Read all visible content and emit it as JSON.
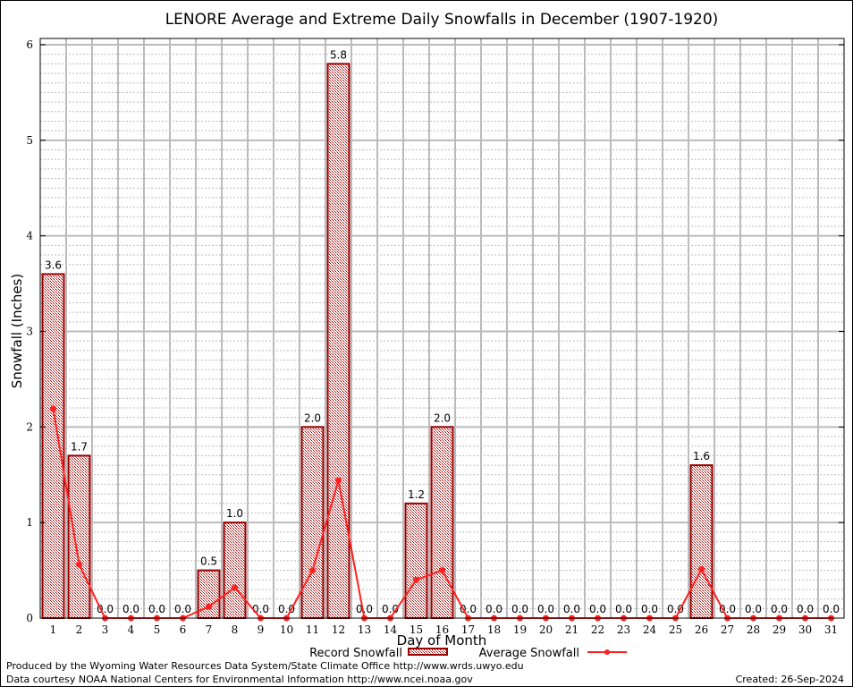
{
  "chart_data": {
    "type": "bar",
    "title": "LENORE Average and Extreme Daily Snowfalls in December (1907-1920)",
    "xlabel": "Day of Month",
    "ylabel": "Snowfall (Inches)",
    "ylim": [
      0,
      6
    ],
    "yticks": [
      0,
      1,
      2,
      3,
      4,
      5,
      6
    ],
    "grid": true,
    "legend_placement": "bottom-center",
    "categories": [
      1,
      2,
      3,
      4,
      5,
      6,
      7,
      8,
      9,
      10,
      11,
      12,
      13,
      14,
      15,
      16,
      17,
      18,
      19,
      20,
      21,
      22,
      23,
      24,
      25,
      26,
      27,
      28,
      29,
      30,
      31
    ],
    "series": [
      {
        "name": "Record Snowfall",
        "type": "bar",
        "color": "#990000",
        "values": [
          3.6,
          1.7,
          0,
          0,
          0,
          0,
          0.5,
          1.0,
          0,
          0,
          2.0,
          5.8,
          0,
          0,
          1.2,
          2.0,
          0,
          0,
          0,
          0,
          0,
          0,
          0,
          0,
          0,
          1.6,
          0,
          0,
          0,
          0,
          0
        ],
        "labels": [
          "3.6",
          "1.7",
          "0.0",
          "0.0",
          "0.0",
          "0.0",
          "0.5",
          "1.0",
          "0.0",
          "0.0",
          "2.0",
          "5.8",
          "0.0",
          "0.0",
          "1.2",
          "2.0",
          "0.0",
          "0.0",
          "0.0",
          "0.0",
          "0.0",
          "0.0",
          "0.0",
          "0.0",
          "0.0",
          "1.6",
          "0.0",
          "0.0",
          "0.0",
          "0.0",
          "0.0"
        ]
      },
      {
        "name": "Average Snowfall",
        "type": "line",
        "color": "#ff2020",
        "values": [
          2.19,
          0.56,
          0,
          0,
          0,
          0,
          0.12,
          0.32,
          0,
          0,
          0.5,
          1.44,
          0,
          0,
          0.4,
          0.5,
          0,
          0,
          0,
          0,
          0,
          0,
          0,
          0,
          0,
          0.51,
          0,
          0,
          0,
          0,
          0
        ]
      }
    ]
  },
  "footer": {
    "produced_by": "Produced by the Wyoming Water Resources Data System/State Climate Office http://www.wrds.uwyo.edu",
    "data_courtesy": "Data courtesy NOAA National Centers for Environmental Information http://www.ncei.noaa.gov",
    "created": "Created: 26-Sep-2024"
  }
}
